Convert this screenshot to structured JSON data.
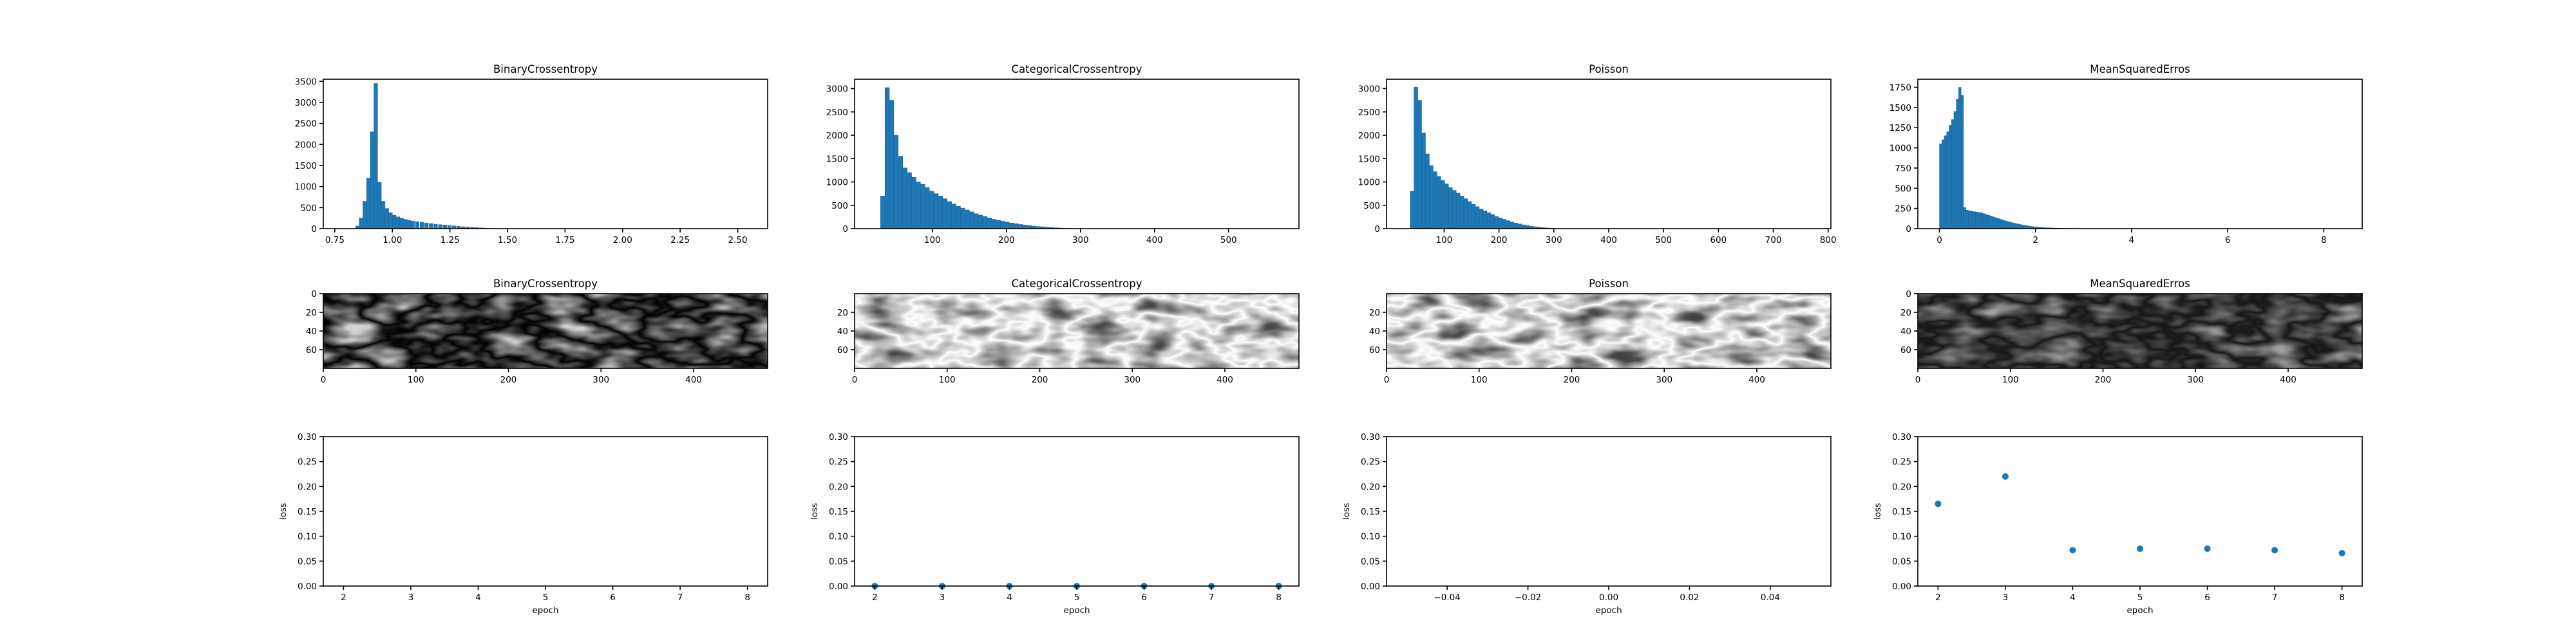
{
  "colors": {
    "accent": "#1f77b4",
    "edge": "#1f5f8f",
    "frame": "#000000",
    "background": "#ffffff"
  },
  "chart_data": [
    {
      "id": "hist-binarycrossentropy",
      "type": "bar",
      "title": "BinaryCrossentropy",
      "xlim": [
        0.7,
        2.63
      ],
      "ylim": [
        0,
        3550
      ],
      "xticks": [
        0.75,
        1.0,
        1.25,
        1.5,
        1.75,
        2.0,
        2.25,
        2.5
      ],
      "xtick_labels": [
        "0.75",
        "1.00",
        "1.25",
        "1.50",
        "1.75",
        "2.00",
        "2.25",
        "2.50"
      ],
      "yticks": [
        0,
        500,
        1000,
        1500,
        2000,
        2500,
        3000,
        3500
      ],
      "ytick_labels": [
        "0",
        "500",
        "1000",
        "1500",
        "2000",
        "2500",
        "3000",
        "3500"
      ],
      "bin_width": 0.016,
      "bin_starts": [
        0.84,
        0.856,
        0.872,
        0.888,
        0.904,
        0.92,
        0.936,
        0.952,
        0.968,
        0.984,
        1.0,
        1.016,
        1.032,
        1.048,
        1.064,
        1.08,
        1.1,
        1.12,
        1.14,
        1.16,
        1.18,
        1.2,
        1.22,
        1.24,
        1.26,
        1.28,
        1.3,
        1.32,
        1.34,
        1.36,
        1.38,
        1.4,
        1.42,
        1.44
      ],
      "counts": [
        60,
        250,
        650,
        1200,
        2300,
        3450,
        1100,
        650,
        480,
        380,
        320,
        280,
        250,
        220,
        200,
        180,
        165,
        150,
        135,
        120,
        105,
        95,
        85,
        75,
        65,
        55,
        45,
        38,
        30,
        24,
        18,
        12,
        8,
        4
      ]
    },
    {
      "id": "hist-categoricalcrossentropy",
      "type": "bar",
      "title": "CategoricalCrossentropy",
      "xlim": [
        -5,
        595
      ],
      "ylim": [
        0,
        3200
      ],
      "xticks": [
        100,
        200,
        300,
        400,
        500
      ],
      "xtick_labels": [
        "100",
        "200",
        "300",
        "400",
        "500"
      ],
      "yticks": [
        0,
        500,
        1000,
        1500,
        2000,
        2500,
        3000
      ],
      "ytick_labels": [
        "0",
        "500",
        "1000",
        "1500",
        "2000",
        "2500",
        "3000"
      ],
      "bin_width": 6,
      "bin_starts": [
        30,
        36,
        42,
        48,
        54,
        60,
        66,
        72,
        78,
        84,
        90,
        96,
        102,
        108,
        114,
        120,
        126,
        132,
        138,
        144,
        150,
        156,
        162,
        168,
        174,
        180,
        186,
        192,
        198,
        204,
        210,
        216,
        222,
        228,
        234,
        240,
        246,
        252,
        258,
        264,
        270,
        276,
        282,
        288,
        294,
        300,
        306
      ],
      "counts": [
        700,
        3020,
        2750,
        2000,
        1550,
        1300,
        1200,
        1100,
        1000,
        950,
        880,
        800,
        750,
        700,
        640,
        580,
        530,
        480,
        440,
        400,
        360,
        320,
        290,
        260,
        230,
        200,
        180,
        160,
        140,
        120,
        105,
        90,
        78,
        66,
        55,
        45,
        38,
        30,
        24,
        18,
        14,
        10,
        8,
        6,
        4,
        3,
        2
      ]
    },
    {
      "id": "hist-poisson",
      "type": "bar",
      "title": "Poisson",
      "xlim": [
        -5,
        805
      ],
      "ylim": [
        0,
        3200
      ],
      "xticks": [
        100,
        200,
        300,
        400,
        500,
        600,
        700,
        800
      ],
      "xtick_labels": [
        "100",
        "200",
        "300",
        "400",
        "500",
        "600",
        "700",
        "800"
      ],
      "yticks": [
        0,
        500,
        1000,
        1500,
        2000,
        2500,
        3000
      ],
      "ytick_labels": [
        "0",
        "500",
        "1000",
        "1500",
        "2000",
        "2500",
        "3000"
      ],
      "bin_width": 7,
      "bin_starts": [
        38,
        45,
        52,
        59,
        66,
        73,
        80,
        87,
        94,
        101,
        108,
        115,
        122,
        129,
        136,
        143,
        150,
        157,
        164,
        171,
        178,
        185,
        192,
        199,
        206,
        213,
        220,
        227,
        234,
        241,
        248,
        255,
        262,
        269,
        276,
        283,
        290,
        297,
        304,
        311
      ],
      "counts": [
        800,
        3030,
        2750,
        2050,
        1600,
        1350,
        1220,
        1120,
        1030,
        960,
        880,
        820,
        760,
        700,
        640,
        580,
        520,
        470,
        420,
        380,
        340,
        300,
        260,
        230,
        200,
        170,
        145,
        120,
        100,
        82,
        66,
        52,
        40,
        30,
        22,
        16,
        11,
        7,
        4,
        2
      ]
    },
    {
      "id": "hist-meansquarederros",
      "type": "bar",
      "title": "MeanSquaredErros",
      "xlim": [
        -0.45,
        8.8
      ],
      "ylim": [
        0,
        1850
      ],
      "xticks": [
        0,
        2,
        4,
        6,
        8
      ],
      "xtick_labels": [
        "0",
        "2",
        "4",
        "6",
        "8"
      ],
      "yticks": [
        0,
        250,
        500,
        750,
        1000,
        1250,
        1500,
        1750
      ],
      "ytick_labels": [
        "0",
        "250",
        "500",
        "750",
        "1000",
        "1250",
        "1500",
        "1750"
      ],
      "bin_width": 0.05,
      "bin_starts": [
        0.0,
        0.05,
        0.1,
        0.15,
        0.2,
        0.25,
        0.3,
        0.35,
        0.4,
        0.45,
        0.5,
        0.55,
        0.6,
        0.65,
        0.7,
        0.75,
        0.8,
        0.85,
        0.9,
        0.95,
        1.0,
        1.05,
        1.1,
        1.15,
        1.2,
        1.25,
        1.3,
        1.35,
        1.4,
        1.45,
        1.5,
        1.55,
        1.6,
        1.65,
        1.7,
        1.75,
        1.8,
        1.85,
        1.9,
        1.95,
        2.0,
        2.05,
        2.1,
        2.15,
        2.2,
        2.25,
        2.3,
        2.35,
        2.4,
        2.45,
        2.5,
        2.55,
        2.6,
        2.65,
        2.7,
        2.75,
        2.8,
        2.85,
        2.9,
        2.95,
        3.0,
        3.05,
        3.1,
        3.15,
        3.2,
        3.25,
        3.3,
        3.35,
        3.4,
        3.45,
        3.5,
        3.55
      ],
      "counts": [
        1050,
        1100,
        1150,
        1200,
        1280,
        1350,
        1450,
        1600,
        1750,
        1650,
        260,
        230,
        220,
        215,
        210,
        205,
        200,
        195,
        185,
        175,
        165,
        155,
        145,
        135,
        125,
        115,
        105,
        96,
        88,
        80,
        72,
        65,
        58,
        52,
        46,
        41,
        36,
        31,
        27,
        23,
        20,
        17,
        15,
        13,
        11,
        10,
        9,
        8,
        7,
        6,
        5,
        5,
        4,
        4,
        3,
        3,
        3,
        2,
        2,
        2,
        2,
        1,
        1,
        1,
        1,
        1,
        1,
        1,
        1,
        1,
        1,
        1
      ]
    },
    {
      "id": "img-binarycrossentropy",
      "type": "heatmap",
      "title": "BinaryCrossentropy",
      "colormap": "gray",
      "xlim": [
        0,
        480
      ],
      "ylim": [
        80,
        0
      ],
      "xticks": [
        0,
        100,
        200,
        300,
        400
      ],
      "xtick_labels": [
        "0",
        "100",
        "200",
        "300",
        "400"
      ],
      "yticks": [
        0,
        20,
        40,
        60
      ],
      "ytick_labels": [
        "0",
        "20",
        "40",
        "60"
      ],
      "intensity": "mostly white background with dark vein-like branching lines"
    },
    {
      "id": "img-categoricalcrossentropy",
      "type": "heatmap",
      "title": "CategoricalCrossentropy",
      "colormap": "gray",
      "xlim": [
        0,
        480
      ],
      "ylim": [
        80,
        0
      ],
      "xticks": [
        0,
        100,
        200,
        300,
        400
      ],
      "xtick_labels": [
        "0",
        "100",
        "200",
        "300",
        "400"
      ],
      "yticks": [
        20,
        40,
        60
      ],
      "ytick_labels": [
        "20",
        "40",
        "60"
      ],
      "intensity": "mostly dark background with light vein-like branching lines"
    },
    {
      "id": "img-poisson",
      "type": "heatmap",
      "title": "Poisson",
      "colormap": "gray",
      "xlim": [
        0,
        480
      ],
      "ylim": [
        80,
        0
      ],
      "xticks": [
        0,
        100,
        200,
        300,
        400
      ],
      "xtick_labels": [
        "0",
        "100",
        "200",
        "300",
        "400"
      ],
      "yticks": [
        20,
        40,
        60
      ],
      "ytick_labels": [
        "20",
        "40",
        "60"
      ],
      "intensity": "mostly dark background with light vein-like branching lines"
    },
    {
      "id": "img-meansquarederros",
      "type": "heatmap",
      "title": "MeanSquaredErros",
      "colormap": "gray",
      "xlim": [
        0,
        480
      ],
      "ylim": [
        80,
        0
      ],
      "xticks": [
        0,
        100,
        200,
        300,
        400
      ],
      "xtick_labels": [
        "0",
        "100",
        "200",
        "300",
        "400"
      ],
      "yticks": [
        0,
        20,
        40,
        60
      ],
      "ytick_labels": [
        "0",
        "20",
        "40",
        "60"
      ],
      "intensity": "light gray background with darker vein-like lines"
    },
    {
      "id": "loss-binarycrossentropy",
      "type": "scatter",
      "title": "",
      "xlabel": "epoch",
      "ylabel": "loss",
      "xlim": [
        1.7,
        8.3
      ],
      "ylim": [
        0,
        0.3
      ],
      "xticks": [
        2,
        3,
        4,
        5,
        6,
        7,
        8
      ],
      "xtick_labels": [
        "2",
        "3",
        "4",
        "5",
        "6",
        "7",
        "8"
      ],
      "yticks": [
        0,
        0.05,
        0.1,
        0.15,
        0.2,
        0.25,
        0.3
      ],
      "ytick_labels": [
        "0.00",
        "0.05",
        "0.10",
        "0.15",
        "0.20",
        "0.25",
        "0.30"
      ],
      "x": [],
      "y": []
    },
    {
      "id": "loss-categoricalcrossentropy",
      "type": "scatter",
      "title": "",
      "xlabel": "epoch",
      "ylabel": "loss",
      "xlim": [
        1.7,
        8.3
      ],
      "ylim": [
        0,
        0.3
      ],
      "xticks": [
        2,
        3,
        4,
        5,
        6,
        7,
        8
      ],
      "xtick_labels": [
        "2",
        "3",
        "4",
        "5",
        "6",
        "7",
        "8"
      ],
      "yticks": [
        0,
        0.05,
        0.1,
        0.15,
        0.2,
        0.25,
        0.3
      ],
      "ytick_labels": [
        "0.00",
        "0.05",
        "0.10",
        "0.15",
        "0.20",
        "0.25",
        "0.30"
      ],
      "x": [
        2,
        3,
        4,
        5,
        6,
        7,
        8
      ],
      "y": [
        0,
        0,
        0,
        0,
        0,
        0,
        0
      ]
    },
    {
      "id": "loss-poisson",
      "type": "scatter",
      "title": "",
      "xlabel": "epoch",
      "ylabel": "loss",
      "xlim": [
        -0.055,
        0.055
      ],
      "ylim": [
        0,
        0.3
      ],
      "xticks": [
        -0.04,
        -0.02,
        0,
        0.02,
        0.04
      ],
      "xtick_labels": [
        "−0.04",
        "−0.02",
        "0.00",
        "0.02",
        "0.04"
      ],
      "yticks": [
        0,
        0.05,
        0.1,
        0.15,
        0.2,
        0.25,
        0.3
      ],
      "ytick_labels": [
        "0.00",
        "0.05",
        "0.10",
        "0.15",
        "0.20",
        "0.25",
        "0.30"
      ],
      "x": [],
      "y": []
    },
    {
      "id": "loss-meansquarederros",
      "type": "scatter",
      "title": "",
      "xlabel": "epoch",
      "ylabel": "loss",
      "xlim": [
        1.7,
        8.3
      ],
      "ylim": [
        0,
        0.3
      ],
      "xticks": [
        2,
        3,
        4,
        5,
        6,
        7,
        8
      ],
      "xtick_labels": [
        "2",
        "3",
        "4",
        "5",
        "6",
        "7",
        "8"
      ],
      "yticks": [
        0,
        0.05,
        0.1,
        0.15,
        0.2,
        0.25,
        0.3
      ],
      "ytick_labels": [
        "0.00",
        "0.05",
        "0.10",
        "0.15",
        "0.20",
        "0.25",
        "0.30"
      ],
      "x": [
        2,
        3,
        4,
        5,
        6,
        7,
        8
      ],
      "y": [
        0.165,
        0.22,
        0.072,
        0.075,
        0.075,
        0.072,
        0.066
      ]
    }
  ]
}
